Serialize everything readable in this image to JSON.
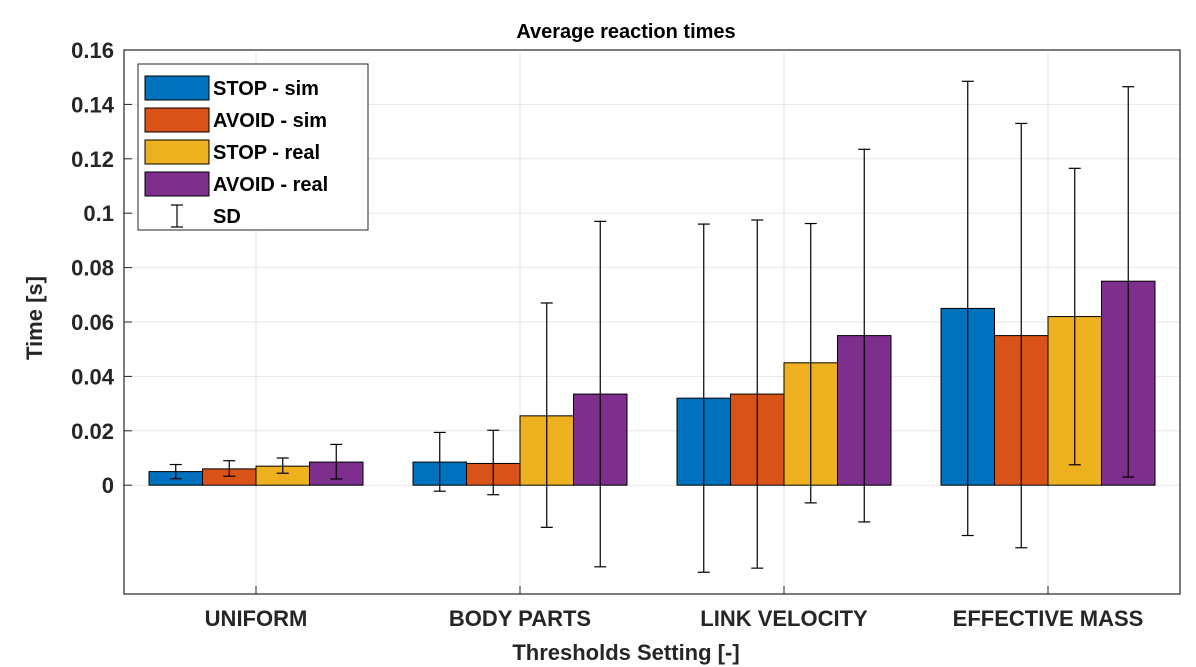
{
  "chart_data": {
    "type": "bar",
    "title": "Average reaction times",
    "xlabel": "Thresholds Setting [-]",
    "ylabel": "Time [s]",
    "ylim": [
      -0.04,
      0.16
    ],
    "yticks": [
      0,
      0.02,
      0.04,
      0.06,
      0.08,
      0.1,
      0.12,
      0.14,
      0.16
    ],
    "ytick_labels": [
      "0",
      "0.02",
      "0.04",
      "0.06",
      "0.08",
      "0.1",
      "0.12",
      "0.14",
      "0.16"
    ],
    "categories": [
      "UNIFORM",
      "BODY PARTS",
      "LINK VELOCITY",
      "EFFECTIVE MASS"
    ],
    "grid": true,
    "legend_position": "top-left",
    "error_label": "SD",
    "series": [
      {
        "name": "STOP - sim",
        "color": "#0072BD",
        "values": [
          0.005,
          0.0085,
          0.032,
          0.065
        ],
        "err_low": [
          0.0024,
          -0.0022,
          -0.032,
          -0.0185
        ],
        "err_high": [
          0.0076,
          0.0194,
          0.096,
          0.1485
        ]
      },
      {
        "name": "AVOID - sim",
        "color": "#D95319",
        "values": [
          0.006,
          0.008,
          0.0335,
          0.055
        ],
        "err_low": [
          0.0033,
          -0.0035,
          -0.0305,
          -0.023
        ],
        "err_high": [
          0.009,
          0.0202,
          0.0975,
          0.133
        ]
      },
      {
        "name": "STOP - real",
        "color": "#EDB120",
        "values": [
          0.007,
          0.0255,
          0.045,
          0.062
        ],
        "err_low": [
          0.0044,
          -0.0155,
          -0.0065,
          0.0075
        ],
        "err_high": [
          0.01,
          0.067,
          0.0962,
          0.1165
        ]
      },
      {
        "name": "AVOID - real",
        "color": "#7E2F8E",
        "values": [
          0.0085,
          0.0335,
          0.055,
          0.075
        ],
        "err_low": [
          0.0023,
          -0.03,
          -0.0135,
          0.003
        ],
        "err_high": [
          0.015,
          0.097,
          0.1235,
          0.1465
        ]
      }
    ]
  }
}
